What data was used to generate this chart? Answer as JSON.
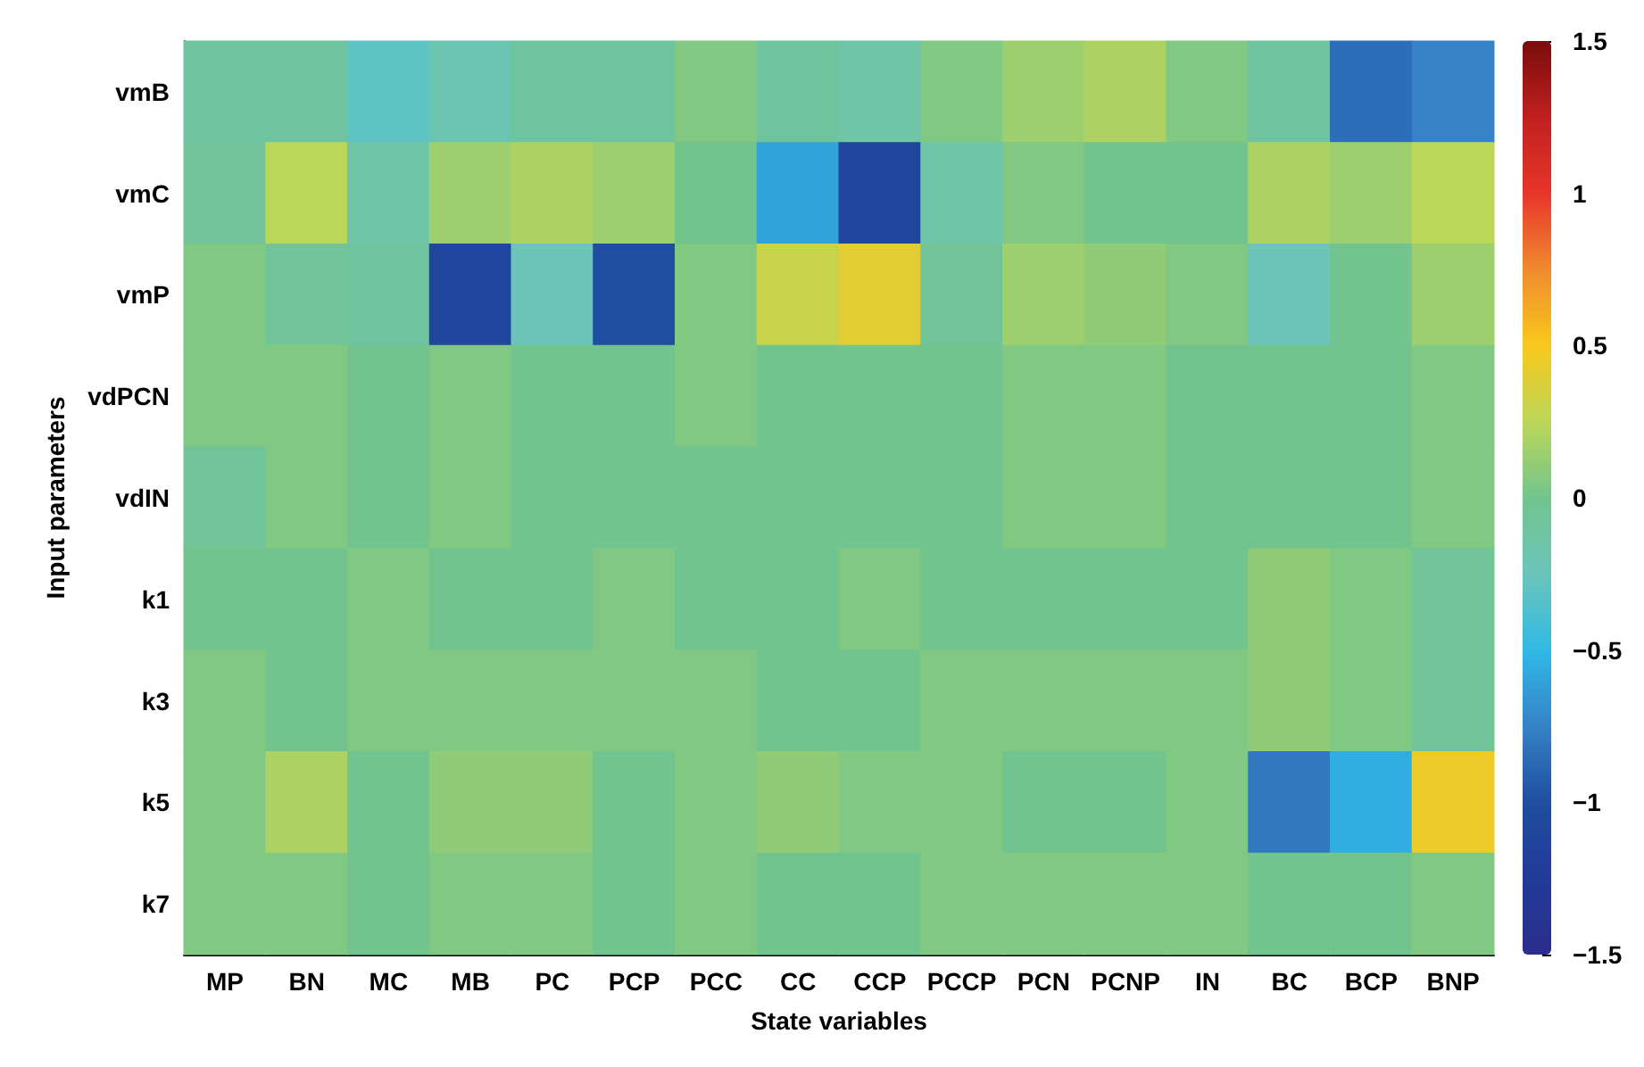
{
  "chart_data": {
    "type": "heatmap",
    "xlabel": "State variables",
    "ylabel": "Input parameters",
    "categories": [
      "MP",
      "BN",
      "MC",
      "MB",
      "PC",
      "PCP",
      "PCC",
      "CC",
      "CCP",
      "PCCP",
      "PCN",
      "PCNP",
      "IN",
      "BC",
      "BCP",
      "BNP"
    ],
    "y_categories": [
      "vmB",
      "vmC",
      "vmP",
      "vdPCN",
      "vdIN",
      "k1",
      "k3",
      "k5",
      "k7"
    ],
    "cells": [
      [
        -0.1,
        -0.1,
        -0.3,
        -0.2,
        -0.1,
        -0.1,
        0.05,
        -0.1,
        -0.15,
        0.05,
        0.15,
        0.2,
        0.05,
        -0.1,
        -0.85,
        -0.75
      ],
      [
        -0.05,
        0.25,
        -0.15,
        0.15,
        0.2,
        0.15,
        0,
        -0.6,
        -1.1,
        -0.15,
        0.05,
        0,
        0,
        0.2,
        0.15,
        0.25
      ],
      [
        0.05,
        -0.05,
        -0.1,
        -1.1,
        -0.25,
        -1.0,
        0.05,
        0.3,
        0.4,
        -0.05,
        0.15,
        0.1,
        0.05,
        -0.25,
        0,
        0.15
      ],
      [
        0.05,
        0.05,
        0,
        0.05,
        0,
        0,
        0.05,
        0,
        0,
        0,
        0.05,
        0.05,
        0,
        0,
        0,
        0.05
      ],
      [
        -0.05,
        0.05,
        0,
        0.05,
        0,
        0,
        0,
        0,
        0,
        0,
        0.05,
        0.05,
        0,
        0,
        0,
        0.05
      ],
      [
        0,
        0,
        0.05,
        0,
        0,
        0.05,
        0,
        0,
        0.05,
        0,
        0,
        0,
        0,
        0.1,
        0.05,
        -0.05
      ],
      [
        0.05,
        0,
        0.05,
        0.05,
        0.05,
        0.05,
        0.05,
        0,
        0,
        0.05,
        0.05,
        0.05,
        0.05,
        0.1,
        0.05,
        -0.05
      ],
      [
        0.05,
        0.2,
        0,
        0.1,
        0.1,
        0,
        0.05,
        0.1,
        0.05,
        0.05,
        0,
        0,
        0.05,
        -0.8,
        -0.55,
        0.45
      ],
      [
        0.05,
        0.05,
        0,
        0.05,
        0.05,
        0,
        0.05,
        0,
        0,
        0.05,
        0.05,
        0.05,
        0.05,
        0,
        0,
        0.05
      ]
    ],
    "clim": [
      -1.5,
      1.5
    ],
    "cticks": [
      {
        "value": -1.5,
        "label": "−1.5"
      },
      {
        "value": -1,
        "label": "−1"
      },
      {
        "value": -0.5,
        "label": "−0.5"
      },
      0,
      0.5,
      1,
      1.5
    ]
  }
}
